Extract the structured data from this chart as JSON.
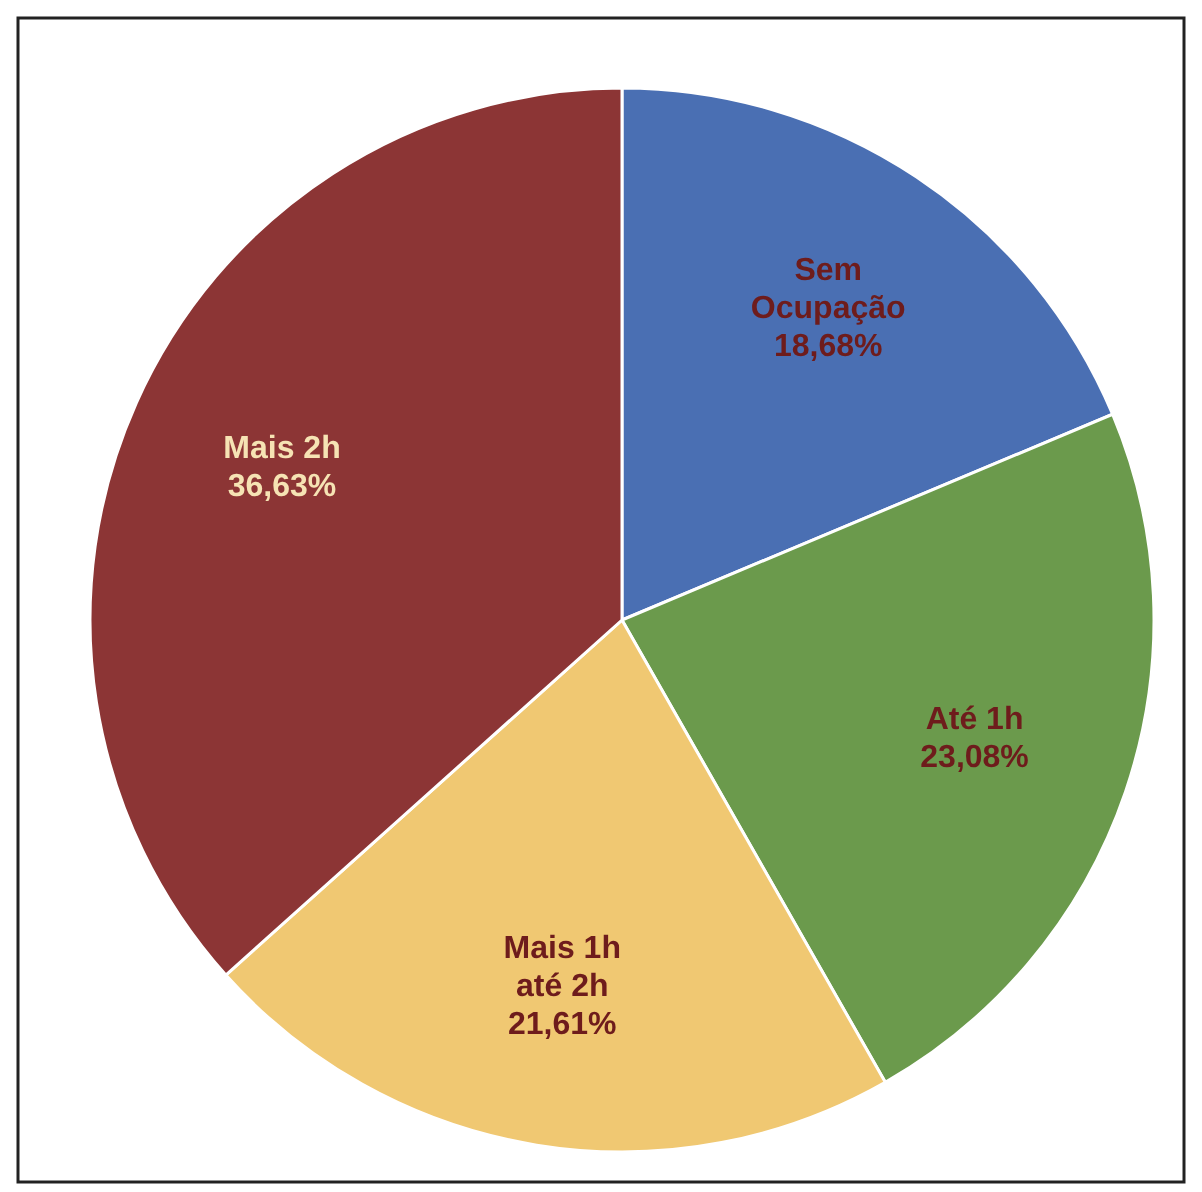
{
  "chart_data": {
    "type": "pie",
    "categories": [
      "Sem Ocupação",
      "Até 1h",
      "Mais 1h até 2h",
      "Mais 2h"
    ],
    "values": [
      18.68,
      23.08,
      21.61,
      36.63
    ],
    "value_labels": [
      "18,68%",
      "23,08%",
      "21,61%",
      "36,63%"
    ],
    "colors": [
      "#4a6fb3",
      "#6b9a4c",
      "#f0c872",
      "#8c3535"
    ]
  }
}
